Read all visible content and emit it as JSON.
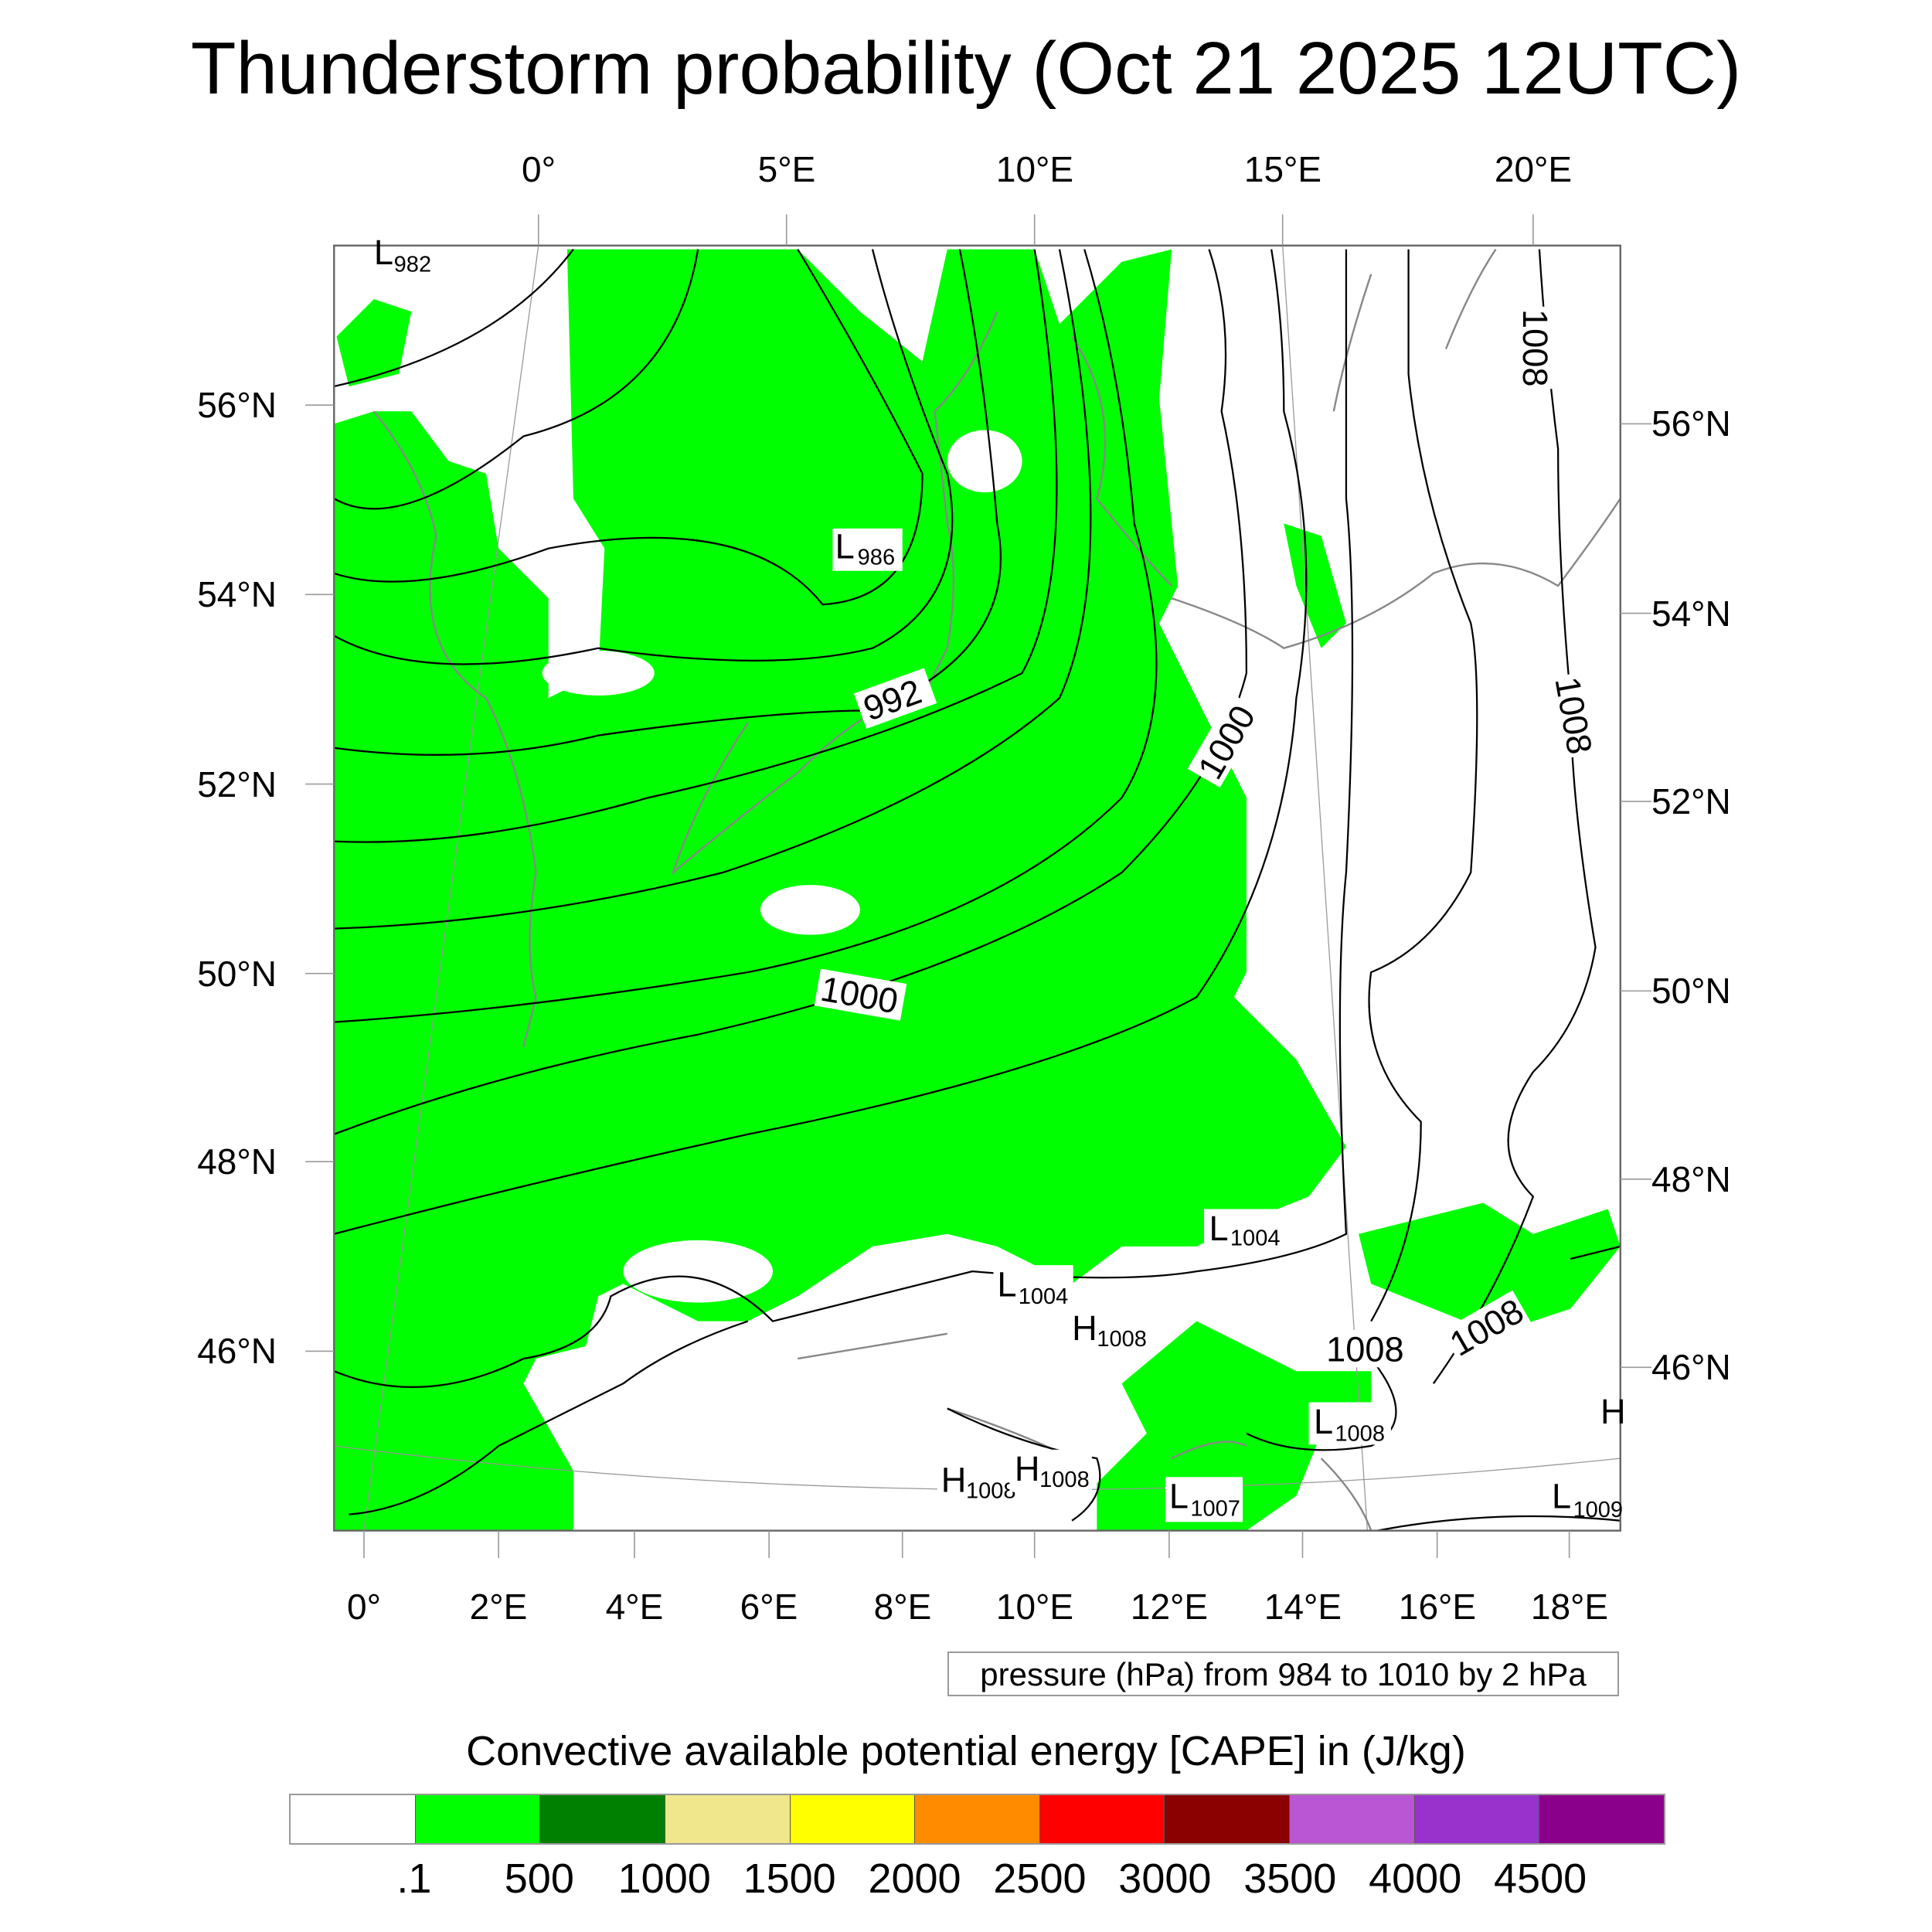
{
  "chart_data": {
    "type": "map",
    "title": "Thunderstorm probability (Oct 21 2025 12UTC)",
    "top_lon_ticks": [
      "0°",
      "5°E",
      "10°E",
      "15°E",
      "20°E"
    ],
    "bottom_lon_ticks": [
      "0°",
      "2°E",
      "4°E",
      "6°E",
      "8°E",
      "10°E",
      "12°E",
      "14°E",
      "16°E",
      "18°E"
    ],
    "left_lat_ticks": [
      "56°N",
      "54°N",
      "52°N",
      "50°N",
      "48°N",
      "46°N"
    ],
    "right_lat_ticks": [
      "56°N",
      "54°N",
      "52°N",
      "50°N",
      "48°N",
      "46°N"
    ],
    "contour_info": "pressure (hPa) from 984 to 1010 by 2 hPa",
    "contour_labels": [
      {
        "t": "L",
        "v": "982"
      },
      {
        "t": "L",
        "v": "986"
      },
      {
        "t": "",
        "v": "992"
      },
      {
        "t": "",
        "v": "1000"
      },
      {
        "t": "",
        "v": "1000"
      },
      {
        "t": "",
        "v": "1008"
      },
      {
        "t": "",
        "v": "1008"
      },
      {
        "t": "L",
        "v": "1004"
      },
      {
        "t": "L",
        "v": "1004"
      },
      {
        "t": "H",
        "v": "1008"
      },
      {
        "t": "",
        "v": "1008"
      },
      {
        "t": "",
        "v": "1008"
      },
      {
        "t": "L",
        "v": "1008"
      },
      {
        "t": "H",
        "v": "1008"
      },
      {
        "t": "H",
        "v": "1008"
      },
      {
        "t": "L",
        "v": "1007"
      },
      {
        "t": "L",
        "v": "1009"
      },
      {
        "t": "H",
        "v": ""
      }
    ],
    "colorbar": {
      "title": "Convective available potential energy [CAPE] in (J/kg)",
      "labels": [
        ".1",
        "500",
        "1000",
        "1500",
        "2000",
        "2500",
        "3000",
        "3500",
        "4000",
        "4500"
      ],
      "colors": [
        "#ffffff",
        "#00ff00",
        "#008000",
        "#f0e68c",
        "#ffff00",
        "#ff8c00",
        "#ff0000",
        "#8b0000",
        "#ba55d3",
        "#9932cc",
        "#8b008b"
      ]
    }
  }
}
